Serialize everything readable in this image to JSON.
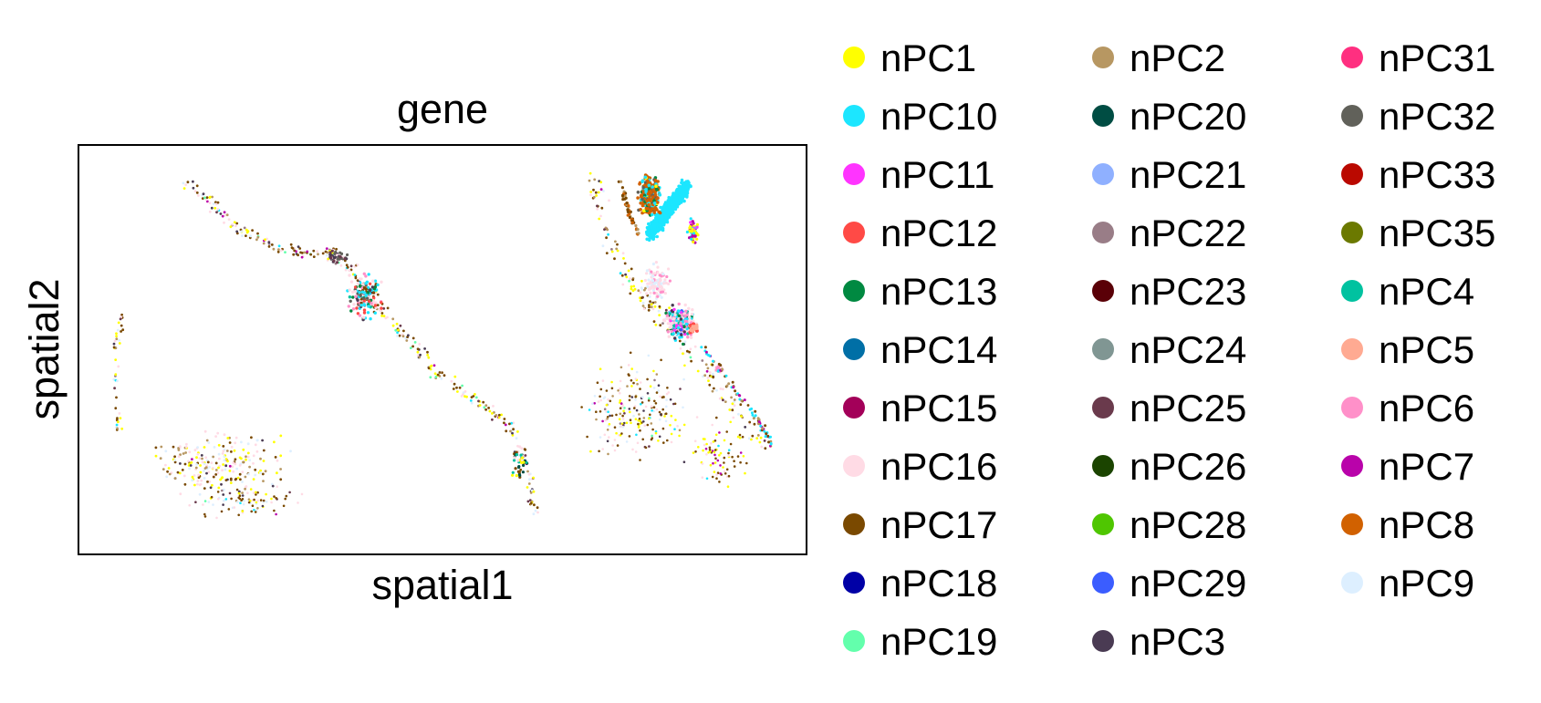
{
  "chart_data": {
    "type": "scatter",
    "title": "gene",
    "xlabel": "spatial1",
    "ylabel": "spatial2",
    "xticks": false,
    "yticks": false,
    "grid": false,
    "legend_placement": "right-outside",
    "legend_columns": 3,
    "categories": [
      {
        "name": "nPC1",
        "color": "#ffff00"
      },
      {
        "name": "nPC10",
        "color": "#1ce6ff"
      },
      {
        "name": "nPC11",
        "color": "#ff34ff"
      },
      {
        "name": "nPC12",
        "color": "#ff4a46"
      },
      {
        "name": "nPC13",
        "color": "#008941"
      },
      {
        "name": "nPC14",
        "color": "#006fa6"
      },
      {
        "name": "nPC15",
        "color": "#a30059"
      },
      {
        "name": "nPC16",
        "color": "#ffdbe5"
      },
      {
        "name": "nPC17",
        "color": "#7a4900"
      },
      {
        "name": "nPC18",
        "color": "#0000a6"
      },
      {
        "name": "nPC19",
        "color": "#63ffac"
      },
      {
        "name": "nPC2",
        "color": "#b79762"
      },
      {
        "name": "nPC20",
        "color": "#004d43"
      },
      {
        "name": "nPC21",
        "color": "#8fb0ff"
      },
      {
        "name": "nPC22",
        "color": "#997d87"
      },
      {
        "name": "nPC23",
        "color": "#5a0007"
      },
      {
        "name": "nPC24",
        "color": "#809693"
      },
      {
        "name": "nPC25",
        "color": "#6a3a4c"
      },
      {
        "name": "nPC26",
        "color": "#1b4400"
      },
      {
        "name": "nPC28",
        "color": "#4fc601"
      },
      {
        "name": "nPC29",
        "color": "#3b5dff"
      },
      {
        "name": "nPC3",
        "color": "#4a3b53"
      },
      {
        "name": "nPC31",
        "color": "#ff2f80"
      },
      {
        "name": "nPC32",
        "color": "#61615a"
      },
      {
        "name": "nPC33",
        "color": "#ba0900"
      },
      {
        "name": "nPC35",
        "color": "#6b7900"
      },
      {
        "name": "nPC4",
        "color": "#00c2a0"
      },
      {
        "name": "nPC5",
        "color": "#ffaa92"
      },
      {
        "name": "nPC6",
        "color": "#ff90c9"
      },
      {
        "name": "nPC7",
        "color": "#b903aa"
      },
      {
        "name": "nPC8",
        "color": "#d16100"
      },
      {
        "name": "nPC9",
        "color": "#ddefff"
      }
    ]
  }
}
